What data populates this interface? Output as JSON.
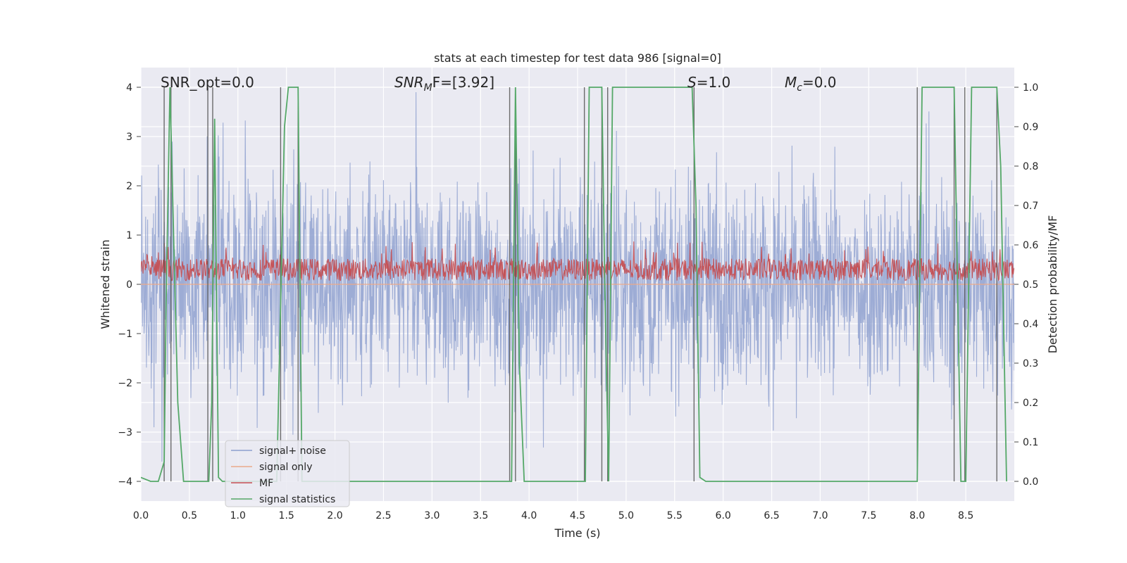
{
  "chart_data": {
    "type": "line",
    "title": "stats at each timestep for test data 986 [signal=0]",
    "xlabel": "Time (s)",
    "ylabel": "Whitened strain",
    "ylabel_right": "Detection probability/MF",
    "xlim": [
      0.0,
      9.0
    ],
    "ylim": [
      -4.4,
      4.4
    ],
    "ylim_right": [
      -0.05,
      1.05
    ],
    "x_ticks": [
      "0.0",
      "0.5",
      "1.0",
      "1.5",
      "2.0",
      "2.5",
      "3.0",
      "3.5",
      "4.0",
      "4.5",
      "5.0",
      "5.5",
      "6.0",
      "6.5",
      "7.0",
      "7.5",
      "8.0",
      "8.5"
    ],
    "y_ticks": [
      "−4",
      "−3",
      "−2",
      "−1",
      "0",
      "1",
      "2",
      "3",
      "4"
    ],
    "y_right_ticks": [
      "0.0",
      "0.1",
      "0.2",
      "0.3",
      "0.4",
      "0.5",
      "0.6",
      "0.7",
      "0.8",
      "0.9",
      "1.0"
    ],
    "grid": true,
    "legend_position": "lower-left",
    "annotations": {
      "snr_opt": "SNR_opt=0.0",
      "snr_mf_italic": "SNR",
      "snr_mf_sub": "M",
      "snr_mf_rest": "F=[3.92]",
      "s_italic": "S",
      "s_rest": "=1.0",
      "mc_italic": "M",
      "mc_sub": "c",
      "mc_rest": "=0.0"
    },
    "series": [
      {
        "name": "signal+ noise",
        "color": "#8c9fce",
        "noise_amplitude": [
          -3.6,
          3.9
        ]
      },
      {
        "name": "signal only",
        "color": "#e9a98a",
        "values": [
          0
        ]
      },
      {
        "name": "MF",
        "color": "#c44e52",
        "range": [
          0.05,
          0.9
        ]
      },
      {
        "name": "signal statistics",
        "color": "#55a868",
        "axis": "right",
        "x": [
          0.0,
          0.1,
          0.18,
          0.24,
          0.26,
          0.3,
          0.34,
          0.38,
          0.44,
          0.7,
          0.73,
          0.76,
          0.8,
          0.84,
          1.3,
          1.4,
          1.48,
          1.52,
          1.62,
          1.66,
          3.82,
          3.86,
          3.9,
          3.95,
          4.58,
          4.62,
          4.75,
          4.78,
          4.82,
          4.86,
          5.68,
          5.72,
          5.76,
          5.82,
          8.0,
          8.05,
          8.38,
          8.45,
          8.5,
          8.56,
          8.82,
          8.86,
          8.92
        ],
        "values": [
          0.01,
          0.0,
          0.0,
          0.05,
          0.45,
          1.0,
          0.6,
          0.2,
          0.0,
          0.0,
          0.2,
          0.92,
          0.01,
          0.0,
          0.0,
          0.0,
          0.9,
          1.0,
          1.0,
          0.0,
          0.0,
          1.0,
          0.3,
          0.0,
          0.0,
          1.0,
          1.0,
          0.5,
          0.0,
          1.0,
          1.0,
          0.7,
          0.01,
          0.0,
          0.0,
          1.0,
          1.0,
          0.0,
          0.0,
          1.0,
          1.0,
          0.8,
          0.0
        ]
      }
    ],
    "vertical_markers": [
      0.24,
      0.31,
      0.69,
      0.74,
      1.44,
      1.62,
      3.8,
      3.86,
      4.57,
      4.75,
      4.81,
      5.7,
      8.0,
      8.38,
      8.49,
      8.82
    ]
  }
}
